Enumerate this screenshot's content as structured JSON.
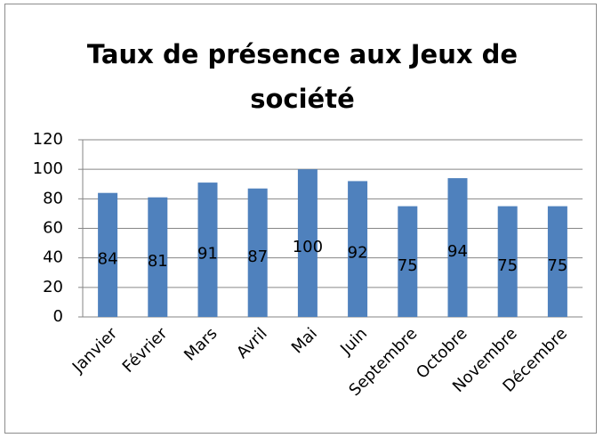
{
  "chart_data": {
    "type": "bar",
    "title": "Taux de présence aux Jeux de société",
    "categories": [
      "Janvier",
      "Février",
      "Mars",
      "Avril",
      "Mai",
      "Juin",
      "Septembre",
      "Octobre",
      "Novembre",
      "Décembre"
    ],
    "values": [
      84,
      81,
      91,
      87,
      100,
      92,
      75,
      94,
      75,
      75
    ],
    "color": "#4f81bd",
    "ylim": [
      0,
      120
    ],
    "yticks": [
      0,
      20,
      40,
      60,
      80,
      100,
      120
    ],
    "grid": true,
    "data_labels": true
  }
}
